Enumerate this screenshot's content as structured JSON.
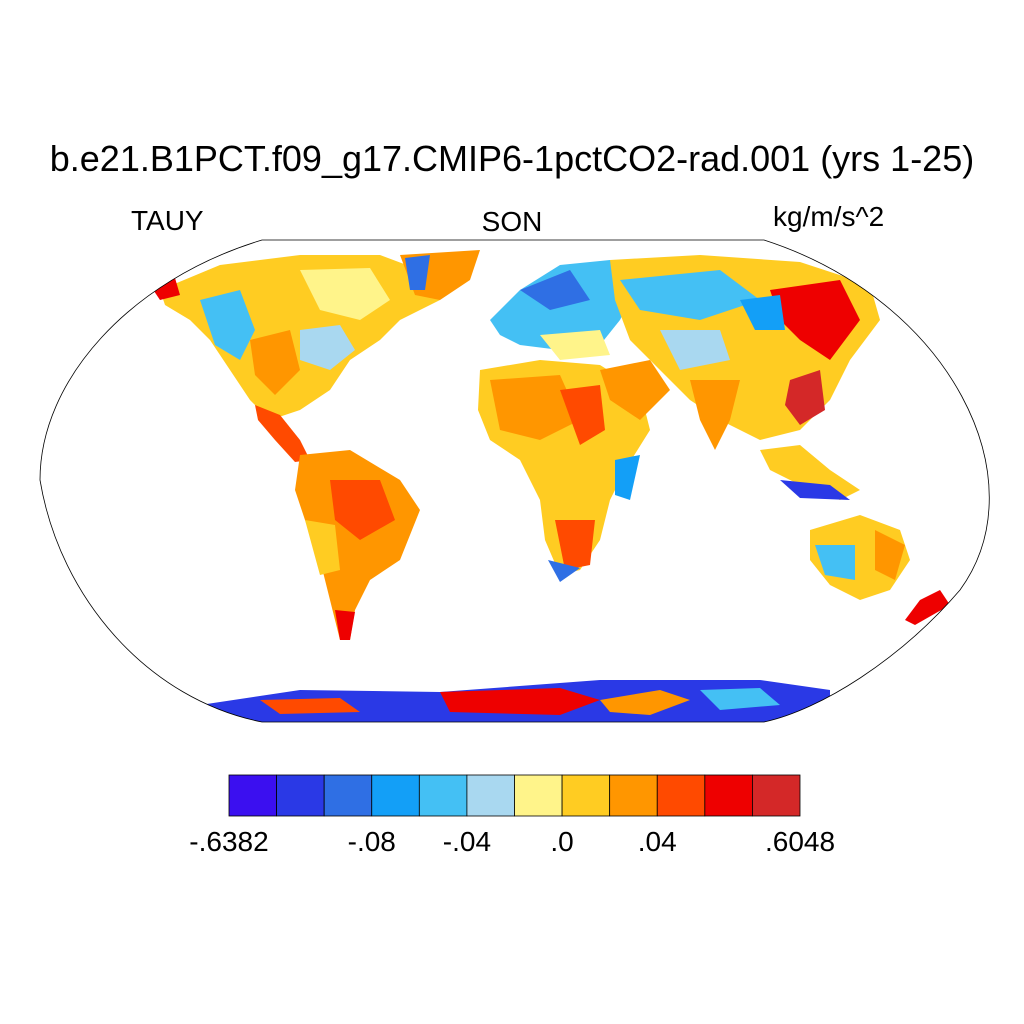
{
  "title": "b.e21.B1PCT.f09_g17.CMIP6-1pctCO2-rad.001 (yrs 1-25)",
  "variable": "TAUY",
  "season": "SON",
  "units": "kg/m/s^2",
  "colorbar": {
    "colors": [
      "#3b0ff0",
      "#2a39e6",
      "#2f6fe4",
      "#139ff7",
      "#44c0f4",
      "#a9d8f0",
      "#fff48a",
      "#ffcc22",
      "#ff9600",
      "#ff4a00",
      "#ee0000",
      "#d42828"
    ],
    "labels": [
      {
        "text": "-.6382",
        "boundary": 0
      },
      {
        "text": "-.08",
        "boundary": 3
      },
      {
        "text": "-.04",
        "boundary": 5
      },
      {
        "text": ".0",
        "boundary": 7
      },
      {
        "text": ".04",
        "boundary": 9
      },
      {
        "text": ".6048",
        "boundary": 12
      }
    ]
  }
}
